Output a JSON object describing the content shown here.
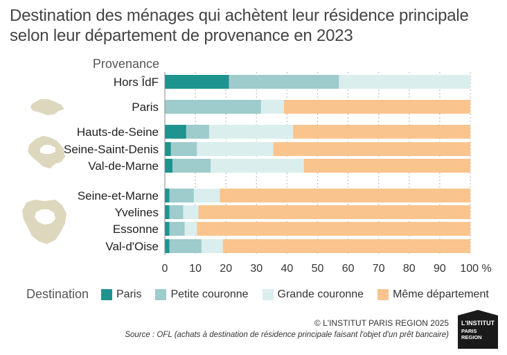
{
  "title_line1": "Destination des ménages qui achètent leur résidence principale",
  "title_line2": "selon leur département de provenance en 2023",
  "provenance_label": "Provenance",
  "destination_label": "Destination",
  "copyright": "© L'INSTITUT PARIS REGION 2025",
  "source": "Source : OFL (achats à destination de résidence principale faisant l'objet d'un prêt bancaire)",
  "logo_text": [
    "L'INSTITUT",
    "PARIS",
    "REGION"
  ],
  "colors": {
    "paris": "#1f9390",
    "petite_couronne": "#9ecbcc",
    "grande_couronne": "#daeeee",
    "meme_departement": "#f9c48e",
    "map_shape": "#ddd7bd",
    "grid": "#bdbdbd",
    "axis": "#8a8a8a"
  },
  "chart_data": {
    "type": "bar",
    "orientation": "horizontal",
    "stacked": true,
    "xlim": [
      0,
      100
    ],
    "x_unit": "%",
    "ticks": [
      "0",
      "10",
      "20",
      "30",
      "40",
      "50",
      "60",
      "70",
      "80",
      "90",
      "100 %"
    ],
    "grid": true,
    "legend_position": "bottom",
    "categories": [
      "Hors ÎdF",
      "Paris",
      "Hauts-de-Seine",
      "Seine-Saint-Denis",
      "Val-de-Marne",
      "Seine-et-Marne",
      "Yvelines",
      "Essonne",
      "Val-d'Oise"
    ],
    "series": [
      {
        "name": "Paris",
        "values": [
          21,
          0,
          7,
          2,
          2.5,
          1.5,
          1.5,
          1.5,
          1.5
        ]
      },
      {
        "name": "Petite couronne",
        "values": [
          36,
          31.5,
          7.5,
          8.5,
          12.5,
          8,
          4.5,
          5,
          10.5
        ]
      },
      {
        "name": "Grande couronne",
        "values": [
          43,
          7.5,
          27.5,
          25,
          30.5,
          8.5,
          5,
          4,
          7
        ]
      },
      {
        "name": "Même département",
        "values": [
          0,
          61,
          58,
          64.5,
          54.5,
          82,
          89,
          89.5,
          81
        ]
      }
    ]
  }
}
